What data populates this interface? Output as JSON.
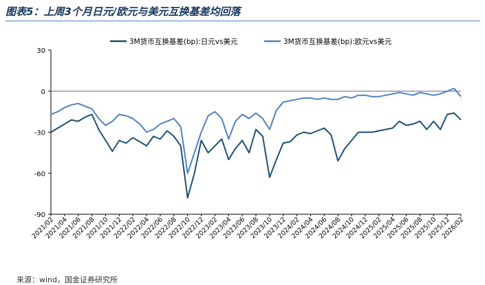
{
  "header": {
    "title": "图表5：上周3个月日元/欧元与美元互换基差均回落"
  },
  "footer": {
    "source": "来源：wind，国金证券研究所"
  },
  "colors": {
    "jpy_series": "#1b4f72",
    "eur_series": "#4f81bd",
    "zero_line": "#7f7f9f",
    "title": "#17375e"
  },
  "chart_data": {
    "type": "line",
    "title": "",
    "xlabel": "",
    "ylabel": "",
    "ylim": [
      -90,
      30
    ],
    "yticks": [
      30,
      0,
      -30,
      -60,
      -90
    ],
    "legend_position": "top",
    "grid": false,
    "x_tick_labels": [
      "2021/02",
      "2021/04",
      "2021/06",
      "2021/08",
      "2021/10",
      "2021/12",
      "2022/02",
      "2022/04",
      "2022/06",
      "2022/08",
      "2022/10",
      "2022/12",
      "2023/02",
      "2023/04",
      "2023/06",
      "2023/08",
      "2023/10",
      "2023/12",
      "2024/02",
      "2024/04",
      "2024/06",
      "2024/08",
      "2024/10",
      "2024/12",
      "2025/02",
      "2025/04",
      "2025/06",
      "2025/08",
      "2025/10",
      "2025/12",
      "2026/02"
    ],
    "series": [
      {
        "name": "3M货币互换基差(bp):日元vs美元",
        "x": [
          "2021/02",
          "2021/03",
          "2021/04",
          "2021/05",
          "2021/06",
          "2021/07",
          "2021/08",
          "2021/09",
          "2021/10",
          "2021/11",
          "2021/12",
          "2022/01",
          "2022/02",
          "2022/03",
          "2022/04",
          "2022/05",
          "2022/06",
          "2022/07",
          "2022/08",
          "2022/09",
          "2022/10",
          "2022/11",
          "2022/12",
          "2023/01",
          "2023/02",
          "2023/03",
          "2023/04",
          "2023/05",
          "2023/06",
          "2023/07",
          "2023/08",
          "2023/09",
          "2023/10",
          "2023/11",
          "2023/12",
          "2024/01",
          "2024/02",
          "2024/03",
          "2024/04",
          "2024/05",
          "2024/06",
          "2024/07",
          "2024/08",
          "2024/09",
          "2024/10",
          "2024/11",
          "2024/12",
          "2025/01",
          "2025/02",
          "2025/03",
          "2025/04",
          "2025/05",
          "2025/06",
          "2025/07",
          "2025/08",
          "2025/09",
          "2025/10",
          "2025/11",
          "2025/12",
          "2026/01",
          "2026/02"
        ],
        "values": [
          -30,
          -27,
          -24,
          -21,
          -22,
          -19,
          -17,
          -28,
          -36,
          -44,
          -36,
          -38,
          -34,
          -37,
          -40,
          -33,
          -35,
          -29,
          -33,
          -40,
          -78,
          -60,
          -36,
          -45,
          -40,
          -35,
          -50,
          -42,
          -36,
          -45,
          -28,
          -33,
          -63,
          -50,
          -38,
          -37,
          -32,
          -30,
          -31,
          -29,
          -27,
          -32,
          -51,
          -42,
          -36,
          -30,
          -30,
          -30,
          -29,
          -28,
          -27,
          -22,
          -25,
          -24,
          -22,
          -28,
          -22,
          -28,
          -17,
          -16,
          -21
        ]
      },
      {
        "name": "3M货币互换基差(bp):欧元vs美元",
        "x": [
          "2021/02",
          "2021/03",
          "2021/04",
          "2021/05",
          "2021/06",
          "2021/07",
          "2021/08",
          "2021/09",
          "2021/10",
          "2021/11",
          "2021/12",
          "2022/01",
          "2022/02",
          "2022/03",
          "2022/04",
          "2022/05",
          "2022/06",
          "2022/07",
          "2022/08",
          "2022/09",
          "2022/10",
          "2022/11",
          "2022/12",
          "2023/01",
          "2023/02",
          "2023/03",
          "2023/04",
          "2023/05",
          "2023/06",
          "2023/07",
          "2023/08",
          "2023/09",
          "2023/10",
          "2023/11",
          "2023/12",
          "2024/01",
          "2024/02",
          "2024/03",
          "2024/04",
          "2024/05",
          "2024/06",
          "2024/07",
          "2024/08",
          "2024/09",
          "2024/10",
          "2024/11",
          "2024/12",
          "2025/01",
          "2025/02",
          "2025/03",
          "2025/04",
          "2025/05",
          "2025/06",
          "2025/07",
          "2025/08",
          "2025/09",
          "2025/10",
          "2025/11",
          "2025/12",
          "2026/01",
          "2026/02"
        ],
        "values": [
          -17,
          -15,
          -12,
          -10,
          -9,
          -11,
          -13,
          -20,
          -25,
          -22,
          -17,
          -18,
          -20,
          -24,
          -30,
          -28,
          -24,
          -22,
          -20,
          -26,
          -60,
          -45,
          -30,
          -18,
          -15,
          -20,
          -35,
          -22,
          -17,
          -20,
          -16,
          -20,
          -28,
          -14,
          -8,
          -7,
          -6,
          -5,
          -5,
          -6,
          -5,
          -6,
          -6,
          -4,
          -5,
          -3,
          -3,
          -4,
          -4,
          -3,
          -2,
          -1,
          -2,
          -3,
          -1,
          -2,
          -3,
          -2,
          0,
          2,
          -4
        ]
      }
    ]
  }
}
